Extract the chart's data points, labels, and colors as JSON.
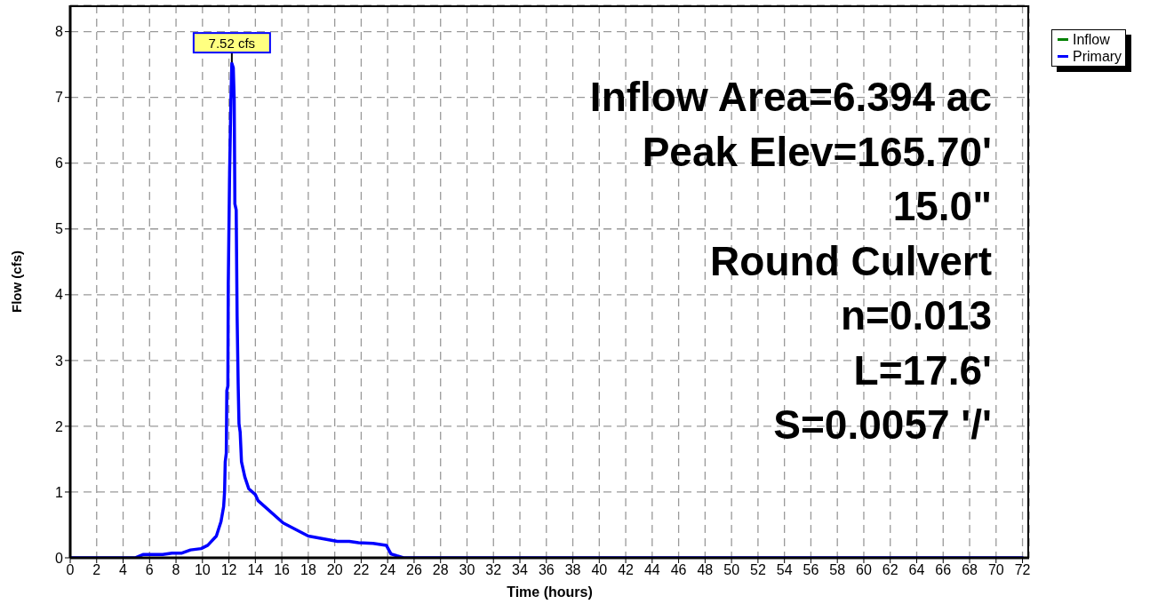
{
  "chart_data": {
    "type": "line",
    "xlabel": "Time (hours)",
    "ylabel": "Flow (cfs)",
    "x": [
      0,
      4.9,
      5.5,
      7.0,
      7.7,
      8.4,
      9.1,
      9.9,
      10.4,
      11.05,
      11.4,
      11.6,
      11.67,
      11.72,
      11.8,
      11.84,
      11.92,
      11.95,
      12.05,
      12.15,
      12.22,
      12.33,
      12.4,
      12.45,
      12.55,
      12.62,
      12.7,
      12.76,
      12.85,
      12.95,
      13.2,
      13.5,
      14.0,
      14.2,
      16.1,
      18.0,
      20.2,
      21.1,
      21.8,
      22.9,
      23.9,
      24.25,
      24.7,
      25.2,
      72
    ],
    "series": [
      {
        "name": "Inflow",
        "color": "#008000",
        "values": [
          null,
          null,
          null,
          null,
          null,
          null,
          null,
          null,
          null,
          null,
          null,
          null,
          null,
          null,
          null,
          null,
          null,
          null,
          null,
          null,
          null,
          null,
          null,
          null,
          null,
          null,
          null,
          null,
          null,
          null,
          null,
          null,
          null,
          null,
          null,
          null,
          null,
          null,
          null,
          null,
          null,
          null,
          null,
          null,
          null
        ]
      },
      {
        "name": "Primary",
        "color": "#0000ff",
        "values": [
          0,
          0,
          0.05,
          0.05,
          0.07,
          0.07,
          0.12,
          0.14,
          0.19,
          0.33,
          0.55,
          0.78,
          1.0,
          1.46,
          1.59,
          2.54,
          2.61,
          4.16,
          5.83,
          6.96,
          7.52,
          7.45,
          6.96,
          5.38,
          5.29,
          3.67,
          2.63,
          2.04,
          1.91,
          1.46,
          1.23,
          1.05,
          0.96,
          0.87,
          0.53,
          0.33,
          0.25,
          0.25,
          0.23,
          0.22,
          0.19,
          0.06,
          0.03,
          0,
          0
        ]
      }
    ],
    "xlim": [
      0,
      72.5
    ],
    "xticks": [
      0,
      2,
      4,
      6,
      8,
      10,
      12,
      14,
      16,
      18,
      20,
      22,
      24,
      26,
      28,
      30,
      32,
      34,
      36,
      38,
      40,
      42,
      44,
      46,
      48,
      50,
      52,
      54,
      56,
      58,
      60,
      62,
      64,
      66,
      68,
      70,
      72
    ],
    "ylim": [
      0,
      8.4
    ],
    "yticks": [
      0,
      1,
      2,
      3,
      4,
      5,
      6,
      7,
      8
    ],
    "grid": true,
    "legend": "top right",
    "marker": "none",
    "line_style": "solid",
    "annotations": [
      {
        "text": "7.52 cfs",
        "x": 12.22,
        "y": 7.52
      },
      "Inflow Area=6.394 ac",
      "Peak Elev=165.70'",
      "15.0\"",
      "Round Culvert",
      "n=0.013",
      "L=17.6'",
      "S=0.0057 '/'"
    ]
  }
}
